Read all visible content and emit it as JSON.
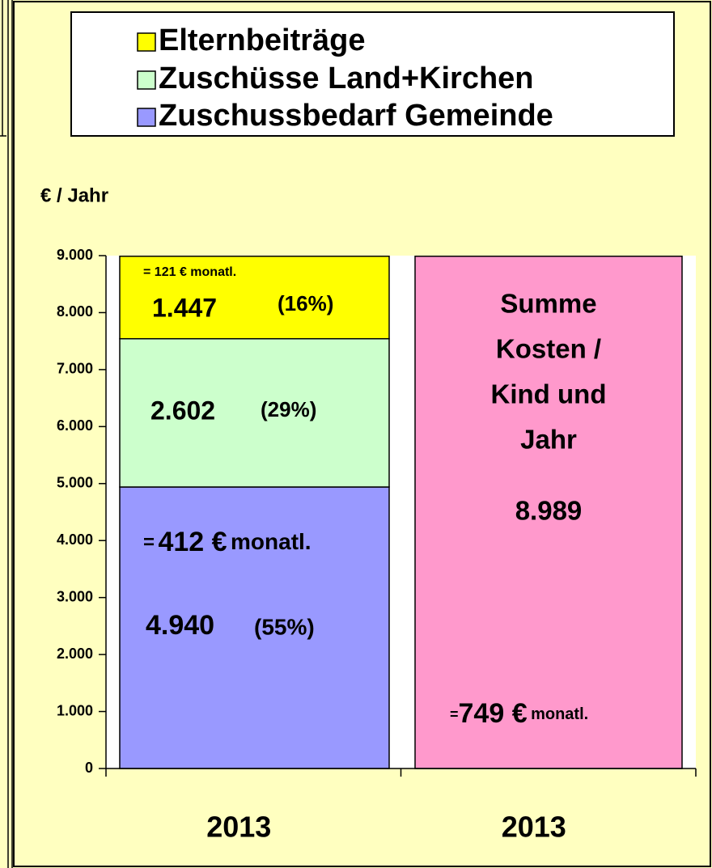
{
  "chart_data": {
    "type": "stacked-bar",
    "categories": [
      "2013",
      "2013"
    ],
    "y_label": "€ / Jahr",
    "ylim": [
      0,
      9000
    ],
    "yticks": [
      0,
      {
        "value": 1000,
        "label": "1.000"
      },
      {
        "value": 2000,
        "label": "2.000"
      },
      {
        "value": 3000,
        "label": "3.000"
      },
      {
        "value": 4000,
        "label": "4.000"
      },
      {
        "value": 5000,
        "label": "5.000"
      },
      {
        "value": 6000,
        "label": "6.000"
      },
      {
        "value": 7000,
        "label": "7.000"
      },
      {
        "value": 8000,
        "label": "8.000"
      },
      {
        "value": 9000,
        "label": "9.000"
      }
    ],
    "series": [
      {
        "name": "Zuschussbedarf Gemeinde",
        "color": "#9999ff",
        "values": [
          4940,
          null
        ],
        "value_labels": [
          "4.940",
          null
        ],
        "shares": [
          55,
          null
        ],
        "share_labels": [
          "(55%)",
          null
        ],
        "monthly": {
          "prefix": "=",
          "amount": "412 €",
          "suffix": "monatl."
        }
      },
      {
        "name": "Zuschüsse Land+Kirchen",
        "color": "#ccffcc",
        "values": [
          2602,
          null
        ],
        "value_labels": [
          "2.602",
          null
        ],
        "shares": [
          29,
          null
        ],
        "share_labels": [
          "(29%)",
          null
        ]
      },
      {
        "name": "Elternbeiträge",
        "color": "#ffff00",
        "values": [
          1447,
          null
        ],
        "value_labels": [
          "1.447",
          null
        ],
        "shares": [
          16,
          null
        ],
        "share_labels": [
          "(16%)",
          null
        ],
        "monthly": {
          "prefix": "=",
          "amount": "121 €",
          "suffix": "monatl."
        }
      }
    ],
    "total": {
      "label_lines": [
        "Summe",
        "Kosten /",
        "Kind und",
        "Jahr"
      ],
      "color": "#ff99cc",
      "values": [
        null,
        8989
      ],
      "value_labels": [
        null,
        "8.989"
      ],
      "monthly": {
        "prefix": "=",
        "amount": "749 €",
        "suffix": "monatl."
      }
    },
    "legend_order": [
      2,
      1,
      0
    ]
  }
}
